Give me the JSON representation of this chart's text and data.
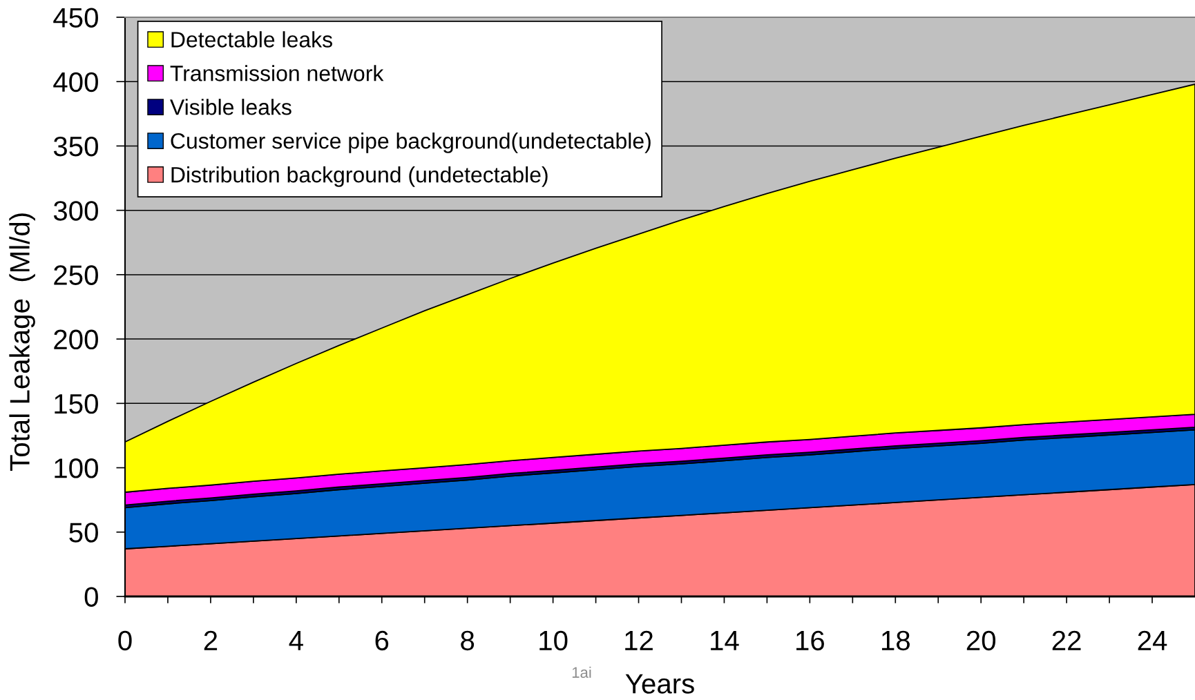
{
  "chart_data": {
    "type": "area",
    "stacked": true,
    "xlabel": "Years",
    "ylabel": "Total Leakage  (Ml/d)",
    "annotations": [
      "1ai"
    ],
    "x": [
      0,
      1,
      2,
      3,
      4,
      5,
      6,
      7,
      8,
      9,
      10,
      11,
      12,
      13,
      14,
      15,
      16,
      17,
      18,
      19,
      20,
      21,
      22,
      23,
      24,
      25
    ],
    "series": [
      {
        "name": "Distribution background (undetectable)",
        "color": "#ff8080",
        "values": [
          37,
          39,
          41,
          43,
          45,
          47,
          49,
          51,
          53,
          55,
          57,
          59,
          61,
          63,
          65,
          67,
          69,
          71,
          73,
          75,
          77,
          79,
          81,
          83,
          85,
          87
        ]
      },
      {
        "name": "Customer service pipe background(undetectable)",
        "color": "#0066cc",
        "values": [
          32,
          33,
          33.5,
          34.5,
          35,
          36,
          36.5,
          37,
          37.5,
          38.5,
          39,
          39.5,
          40,
          40,
          40.5,
          41,
          41,
          41.5,
          42,
          42,
          42,
          42.5,
          42.5,
          42.5,
          42.5,
          42.5
        ]
      },
      {
        "name": "Visible leaks",
        "color": "#000080",
        "values": [
          2,
          2,
          2,
          2,
          2,
          2,
          2,
          2,
          2,
          2,
          2,
          2,
          2,
          2,
          2,
          2,
          2,
          2,
          2,
          2,
          2,
          2,
          2,
          2,
          2,
          2
        ]
      },
      {
        "name": "Transmission network",
        "color": "#ff00ff",
        "values": [
          10,
          10,
          10,
          10,
          10,
          10,
          10,
          10,
          10,
          10,
          10,
          10,
          10,
          10,
          10,
          10,
          10,
          10,
          10,
          10,
          10,
          10,
          10,
          10,
          10,
          10
        ]
      },
      {
        "name": "Detectable leaks",
        "color": "#ffff00",
        "values": [
          39,
          52,
          65,
          77,
          89,
          100,
          111,
          122,
          132,
          141.5,
          151,
          160,
          168.5,
          177.5,
          185.5,
          193,
          200.5,
          207,
          213.5,
          220,
          226.5,
          232.5,
          238.5,
          244.5,
          250.5,
          256.5
        ]
      }
    ],
    "xlim": [
      0,
      25
    ],
    "xticks": [
      0,
      {
        "value": 1,
        "label": null
      },
      2,
      {
        "value": 3,
        "label": null
      },
      4,
      {
        "value": 5,
        "label": null
      },
      6,
      {
        "value": 7,
        "label": null
      },
      8,
      {
        "value": 9,
        "label": null
      },
      10,
      {
        "value": 11,
        "label": null
      },
      12,
      {
        "value": 13,
        "label": null
      },
      14,
      {
        "value": 15,
        "label": null
      },
      16,
      {
        "value": 17,
        "label": null
      },
      18,
      {
        "value": 19,
        "label": null
      },
      20,
      {
        "value": 21,
        "label": null
      },
      22,
      {
        "value": 23,
        "label": null
      },
      24
    ],
    "ylim": [
      0,
      450
    ],
    "yticks": [
      0,
      50,
      100,
      150,
      200,
      250,
      300,
      350,
      400,
      450
    ],
    "grid": "y",
    "legend": "top left"
  }
}
